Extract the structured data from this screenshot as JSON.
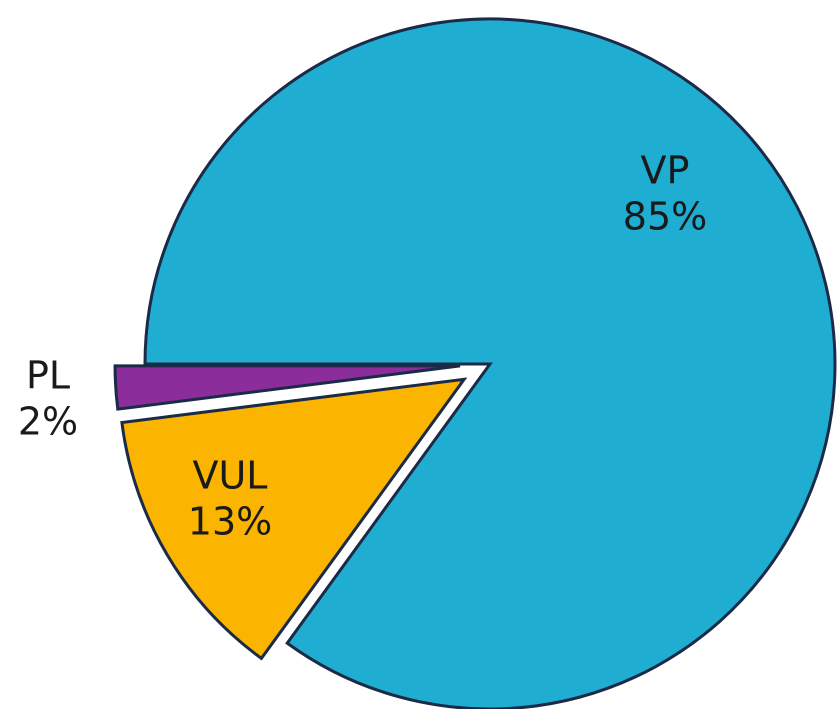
{
  "chart_data": {
    "type": "pie",
    "categories": [
      "VP",
      "VUL",
      "PL"
    ],
    "values": [
      85,
      13,
      2
    ],
    "value_labels": [
      "85%",
      "13%",
      "2%"
    ],
    "colors": [
      "#1fadd1",
      "#fbb400",
      "#8b2d9b"
    ]
  }
}
